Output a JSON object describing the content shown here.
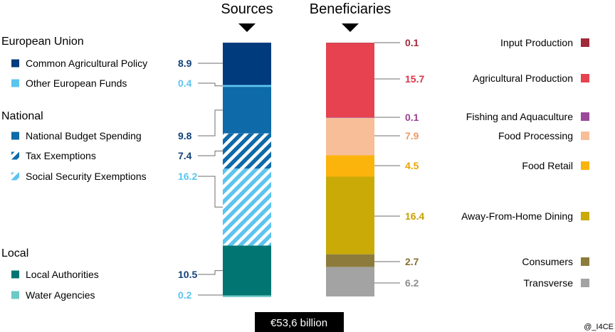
{
  "chart_data": {
    "type": "stacked-bar",
    "column_headers": [
      "Sources",
      "Beneficiaries"
    ],
    "total_label": "€53,6 billion",
    "credit": "@_I4CE",
    "sources": {
      "groups": [
        {
          "name": "European Union",
          "items": [
            {
              "label": "Common Agricultural Policy",
              "value": 8.9,
              "display": "8.9",
              "color": "#003b7d",
              "pattern": "solid",
              "label_color": "#13427a"
            },
            {
              "label": "Other European Funds",
              "value": 0.4,
              "display": "0.4",
              "color": "#5cc4ef",
              "pattern": "solid",
              "label_color": "#5cc4ef"
            }
          ]
        },
        {
          "name": "National",
          "items": [
            {
              "label": "National Budget Spending",
              "value": 9.8,
              "display": "9.8",
              "color": "#0e6aa9",
              "pattern": "solid",
              "label_color": "#13427a"
            },
            {
              "label": "Tax Exemptions",
              "value": 7.4,
              "display": "7.4",
              "color": "#0e6aa9",
              "pattern": "hatch",
              "label_color": "#13427a"
            },
            {
              "label": "Social Security Exemptions",
              "value": 16.2,
              "display": "16.2",
              "color": "#5cc4ef",
              "pattern": "hatch",
              "label_color": "#5cc4ef"
            }
          ]
        },
        {
          "name": "Local",
          "items": [
            {
              "label": "Local Authorities",
              "value": 10.5,
              "display": "10.5",
              "color": "#007571",
              "pattern": "solid",
              "label_color": "#13427a"
            },
            {
              "label": "Water Agencies",
              "value": 0.2,
              "display": "0.2",
              "color": "#6cc9c6",
              "pattern": "solid",
              "label_color": "#5cc4ef"
            }
          ]
        }
      ]
    },
    "beneficiaries": [
      {
        "label": "Input Production",
        "value": 0.1,
        "display": "0.1",
        "color": "#9e2a3a",
        "label_color": "#a12a3b"
      },
      {
        "label": "Agricultural Production",
        "value": 15.7,
        "display": "15.7",
        "color": "#e6424f",
        "label_color": "#d8344b"
      },
      {
        "label": "Fishing and Aquaculture",
        "value": 0.1,
        "display": "0.1",
        "color": "#9b4a9b",
        "label_color": "#9b3f8f"
      },
      {
        "label": "Food Processing",
        "value": 7.9,
        "display": "7.9",
        "color": "#f7be98",
        "label_color": "#ed9a6a"
      },
      {
        "label": "Food Retail",
        "value": 4.5,
        "display": "4.5",
        "color": "#fbb40b",
        "label_color": "#e9a400"
      },
      {
        "label": "Away-From-Home Dining",
        "value": 16.4,
        "display": "16.4",
        "color": "#c9aa06",
        "label_color": "#c9a100"
      },
      {
        "label": "Consumers",
        "value": 2.7,
        "display": "2.7",
        "color": "#8d7b3c",
        "label_color": "#857030"
      },
      {
        "label": "Transverse",
        "value": 6.2,
        "display": "6.2",
        "color": "#a3a3a3",
        "label_color": "#8f8f8f"
      }
    ]
  }
}
